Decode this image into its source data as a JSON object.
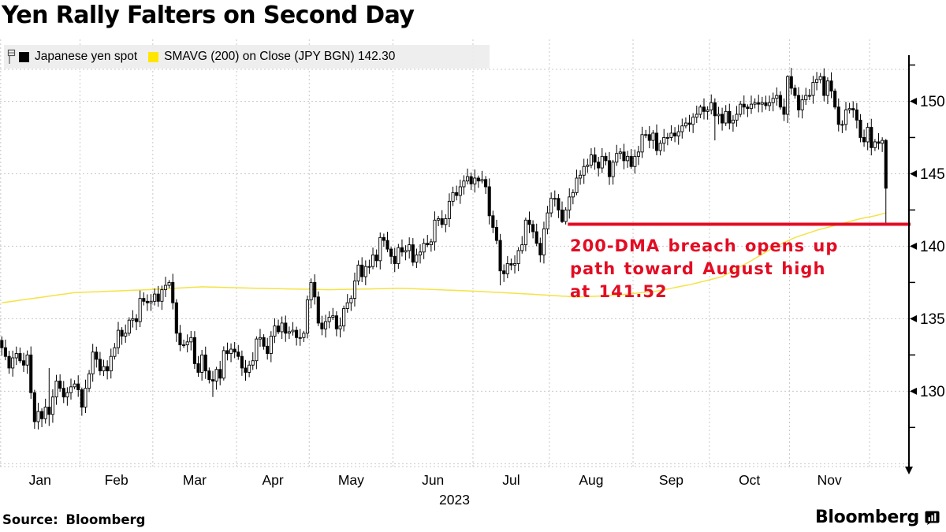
{
  "page": {
    "title": "Yen Rally Falters on Second Day",
    "source_label": "Source: Bloomberg",
    "brand": "Bloomberg"
  },
  "legend": {
    "items": [
      {
        "swatch": "#000000",
        "label": "Japanese yen spot"
      },
      {
        "swatch": "#ffe600",
        "label": "SMAVG (200)  on Close (JPY BGN) 142.30"
      }
    ]
  },
  "chart_data": {
    "type": "candlestick",
    "title": "Yen Rally Falters on Second Day",
    "series": [
      {
        "name": "Japanese yen spot",
        "style": "ohlc-candles",
        "color": "#000000"
      },
      {
        "name": "SMAVG (200) on Close (JPY BGN)",
        "style": "line",
        "color": "#f5e244",
        "last_value": 142.3
      }
    ],
    "year": "2023",
    "x_labels": [
      "Jan",
      "Feb",
      "Mar",
      "Apr",
      "May",
      "Jun",
      "Jul",
      "Aug",
      "Sep",
      "Oct",
      "Nov"
    ],
    "month_boundaries": [
      0,
      22,
      42,
      65,
      85,
      108,
      130,
      151,
      174,
      195,
      217,
      239,
      244
    ],
    "y_ticks": [
      130,
      135,
      140,
      145,
      150
    ],
    "y_minor_ticks": [
      127.5,
      132.5,
      137.5,
      142.5,
      147.5,
      152.5
    ],
    "y_gridlines": [
      125,
      130,
      135,
      140,
      145,
      150
    ],
    "ylim": [
      124.8,
      152.2
    ],
    "first_open": 133.5,
    "closes": [
      133.0,
      132.4,
      131.6,
      132.3,
      132.6,
      132.1,
      131.8,
      132.5,
      129.9,
      127.9,
      128.6,
      128.1,
      128.9,
      128.4,
      129.6,
      130.7,
      130.2,
      129.6,
      129.9,
      130.3,
      130.5,
      130.1,
      128.9,
      130.2,
      131.2,
      132.7,
      132.2,
      131.4,
      131.7,
      131.4,
      132.4,
      133.0,
      134.2,
      133.8,
      134.0,
      134.9,
      135.0,
      134.8,
      136.4,
      136.2,
      136.1,
      136.2,
      136.7,
      136.2,
      137.0,
      137.3,
      137.5,
      136.1,
      134.0,
      133.2,
      133.2,
      133.4,
      133.7,
      131.9,
      131.3,
      132.5,
      131.4,
      130.8,
      130.7,
      131.5,
      130.9,
      132.8,
      132.6,
      132.9,
      132.7,
      132.4,
      131.6,
      131.3,
      131.8,
      132.1,
      133.6,
      133.7,
      133.1,
      132.6,
      133.8,
      134.5,
      134.1,
      134.7,
      134.0,
      134.1,
      134.2,
      133.7,
      133.7,
      134.0,
      136.3,
      137.5,
      136.5,
      134.7,
      134.3,
      134.8,
      135.1,
      135.2,
      134.3,
      134.5,
      135.7,
      136.1,
      136.4,
      137.6,
      138.7,
      137.9,
      138.6,
      138.6,
      139.4,
      139.0,
      140.6,
      140.4,
      139.8,
      139.3,
      138.8,
      139.9,
      139.6,
      139.7,
      140.1,
      138.9,
      139.4,
      139.6,
      140.2,
      140.1,
      140.3,
      141.8,
      141.9,
      141.5,
      141.9,
      143.1,
      143.7,
      143.5,
      144.1,
      144.5,
      144.8,
      144.3,
      144.7,
      144.5,
      144.6,
      144.1,
      142.1,
      141.3,
      140.4,
      138.3,
      138.1,
      138.8,
      138.7,
      138.8,
      139.7,
      140.1,
      141.8,
      141.5,
      141.0,
      140.2,
      139.4,
      141.2,
      142.3,
      143.3,
      143.3,
      142.5,
      141.7,
      142.5,
      143.4,
      143.7,
      144.7,
      144.9,
      145.5,
      145.6,
      146.3,
      145.8,
      145.4,
      146.2,
      145.9,
      144.8,
      145.8,
      146.4,
      146.5,
      145.9,
      146.2,
      145.5,
      146.2,
      146.5,
      147.7,
      147.7,
      147.3,
      147.8,
      146.6,
      147.1,
      147.5,
      147.5,
      147.8,
      147.6,
      147.9,
      148.3,
      148.5,
      148.4,
      148.9,
      149.1,
      149.6,
      149.3,
      149.4,
      149.9,
      149.0,
      149.1,
      148.5,
      149.3,
      148.5,
      148.7,
      149.1,
      149.8,
      149.6,
      149.5,
      149.8,
      149.9,
      149.8,
      149.9,
      149.7,
      149.9,
      150.2,
      150.4,
      149.6,
      149.1,
      151.7,
      150.9,
      150.4,
      149.4,
      150.1,
      150.4,
      150.4,
      151.3,
      151.5,
      151.7,
      150.4,
      151.4,
      150.7,
      149.6,
      148.4,
      148.4,
      149.4,
      149.5,
      149.4,
      148.7,
      147.5,
      147.2,
      148.2,
      146.8,
      147.2,
      147.1,
      147.3,
      144.0
    ],
    "wick_overrides": {
      "9": {
        "l": 127.4
      },
      "13": {
        "h": 131.6,
        "l": 127.6
      },
      "58": {
        "l": 129.6
      },
      "84": {
        "h": 136.6
      },
      "104": {
        "h": 140.95
      },
      "137": {
        "l": 137.3
      },
      "154": {
        "l": 141.6
      },
      "155": {
        "l": 141.5
      },
      "196": {
        "h": 150.2,
        "l": 147.3
      },
      "216": {
        "h": 151.8
      },
      "225": {
        "h": 151.95
      },
      "243": {
        "h": 147.4,
        "l": 141.6
      }
    },
    "sma_points": [
      [
        0,
        136.1
      ],
      [
        20,
        136.8
      ],
      [
        40,
        137.0
      ],
      [
        55,
        137.2
      ],
      [
        70,
        137.1
      ],
      [
        90,
        137.0
      ],
      [
        110,
        137.1
      ],
      [
        130,
        136.9
      ],
      [
        145,
        136.7
      ],
      [
        158,
        136.5
      ],
      [
        168,
        136.6
      ],
      [
        180,
        136.9
      ],
      [
        190,
        137.4
      ],
      [
        198,
        137.9
      ],
      [
        206,
        139.0
      ],
      [
        212,
        139.9
      ],
      [
        218,
        140.6
      ],
      [
        224,
        141.1
      ],
      [
        230,
        141.5
      ],
      [
        236,
        141.9
      ],
      [
        240,
        142.1
      ],
      [
        243,
        142.3
      ]
    ],
    "red_line": {
      "value": 141.52,
      "start_day": 156
    },
    "annotation": {
      "lines": [
        "200-DMA breach opens up",
        "path toward August high",
        "at 141.52"
      ]
    },
    "colors": {
      "red": "#e30c23",
      "sma": "#f5e244",
      "grid": "#c8c8c8",
      "candle": "#000000",
      "legend_bg": "#ededed"
    }
  }
}
